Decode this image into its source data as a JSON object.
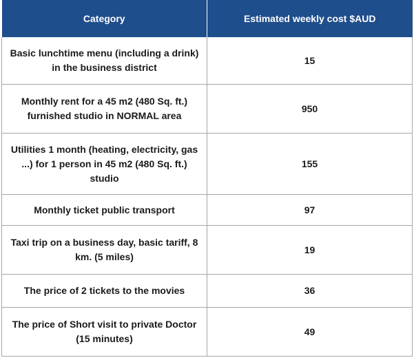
{
  "header": {
    "category": "Category",
    "cost": "Estimated weekly cost $AUD"
  },
  "rows": [
    {
      "category": "Basic lunchtime menu (including a drink) in the business district",
      "cost": "15"
    },
    {
      "category": "Monthly rent for a 45 m2 (480 Sq. ft.) furnished studio in NORMAL area",
      "cost": "950"
    },
    {
      "category": "Utilities 1 month (heating, electricity, gas ...) for 1 person in 45 m2 (480 Sq. ft.) studio",
      "cost": "155"
    },
    {
      "category": "Monthly ticket public transport",
      "cost": "97"
    },
    {
      "category": "Taxi trip on a business day, basic tariff, 8 km. (5 miles)",
      "cost": "19"
    },
    {
      "category": "The price of 2 tickets to the movies",
      "cost": "36"
    },
    {
      "category": "The price of Short visit to private Doctor (15 minutes)",
      "cost": "49"
    }
  ],
  "colors": {
    "header_bg": "#1f4e8c",
    "header_text": "#ffffff",
    "grid": "#a6a6a6"
  }
}
